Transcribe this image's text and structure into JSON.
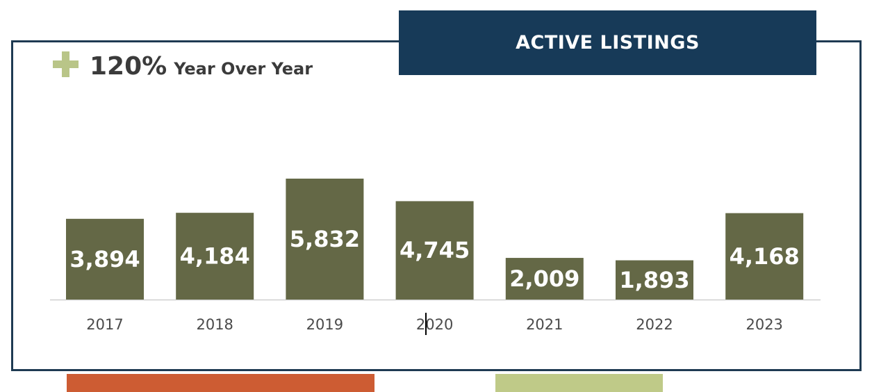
{
  "header": {
    "title": "ACTIVE LISTINGS"
  },
  "summary": {
    "change_value": "120%",
    "change_label": "Year Over Year",
    "icon": "plus-icon"
  },
  "colors": {
    "bar": "#646846",
    "header_bg": "#173a58",
    "frame_border": "#1e3a52",
    "plus_icon": "#b9c588",
    "accent_orange": "#cd5c33",
    "accent_green": "#bfca88"
  },
  "chart_data": {
    "type": "bar",
    "title": "ACTIVE LISTINGS",
    "categories": [
      "2017",
      "2018",
      "2019",
      "2020",
      "2021",
      "2022",
      "2023"
    ],
    "values": [
      3894,
      4184,
      5832,
      4745,
      2009,
      1893,
      4168
    ],
    "value_labels": [
      "3,894",
      "4,184",
      "5,832",
      "4,745",
      "2,009",
      "1,893",
      "4,168"
    ],
    "grid": false,
    "legend": "none"
  }
}
